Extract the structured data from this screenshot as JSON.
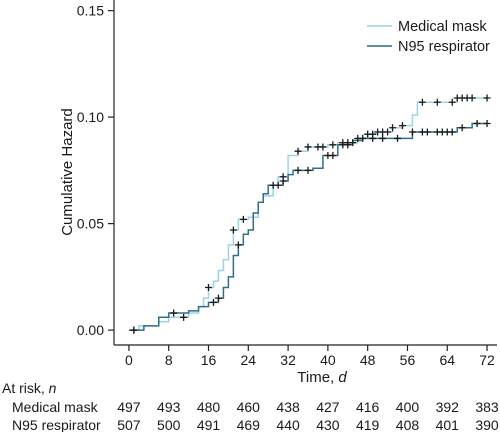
{
  "chart_data": {
    "type": "line",
    "title": "",
    "xlabel": "Time,",
    "xlabel_unit": "d",
    "ylabel": "Cumulative Hazard",
    "xlim": [
      -3,
      74
    ],
    "ylim": [
      -0.007,
      0.155
    ],
    "x_ticks": [
      0,
      8,
      16,
      24,
      32,
      40,
      48,
      56,
      64,
      72
    ],
    "y_ticks": [
      0,
      0.05,
      0.1,
      0.15
    ],
    "y_tick_labels": [
      "0.00",
      "0.05",
      "0.10",
      "0.15"
    ],
    "legend_position": "top-right",
    "series": [
      {
        "name": "Medical mask",
        "color": "#9dd3e6",
        "steps": [
          [
            0,
            0
          ],
          [
            2,
            0.002
          ],
          [
            6,
            0.004
          ],
          [
            8,
            0.006
          ],
          [
            12,
            0.008
          ],
          [
            14,
            0.011
          ],
          [
            15,
            0.015
          ],
          [
            16,
            0.02
          ],
          [
            17,
            0.023
          ],
          [
            18,
            0.028
          ],
          [
            19,
            0.033
          ],
          [
            20,
            0.04
          ],
          [
            21,
            0.047
          ],
          [
            22,
            0.052
          ],
          [
            24,
            0.053
          ],
          [
            26,
            0.06
          ],
          [
            27,
            0.063
          ],
          [
            29,
            0.068
          ],
          [
            30,
            0.072
          ],
          [
            32,
            0.082
          ],
          [
            34,
            0.084
          ],
          [
            36,
            0.086
          ],
          [
            40,
            0.087
          ],
          [
            42,
            0.088
          ],
          [
            46,
            0.09
          ],
          [
            48,
            0.092
          ],
          [
            50,
            0.093
          ],
          [
            53,
            0.095
          ],
          [
            55,
            0.096
          ],
          [
            57,
            0.101
          ],
          [
            58,
            0.107
          ],
          [
            66,
            0.109
          ],
          [
            72,
            0.109
          ]
        ],
        "censor_x": [
          1,
          11,
          16,
          21,
          23,
          29,
          31,
          34,
          36,
          38,
          39,
          41,
          43,
          44,
          45,
          46,
          47,
          48,
          49,
          50,
          51,
          52,
          53,
          55,
          59,
          62,
          65,
          66,
          67,
          68,
          69,
          72
        ]
      },
      {
        "name": "N95 respirator",
        "color": "#2f6f8a",
        "steps": [
          [
            0,
            0
          ],
          [
            3,
            0.002
          ],
          [
            6,
            0.006
          ],
          [
            8,
            0.008
          ],
          [
            12,
            0.009
          ],
          [
            14,
            0.011
          ],
          [
            16,
            0.013
          ],
          [
            18,
            0.015
          ],
          [
            19,
            0.02
          ],
          [
            20,
            0.025
          ],
          [
            21,
            0.035
          ],
          [
            22,
            0.04
          ],
          [
            23,
            0.045
          ],
          [
            24,
            0.047
          ],
          [
            25,
            0.055
          ],
          [
            26,
            0.06
          ],
          [
            27,
            0.064
          ],
          [
            28,
            0.068
          ],
          [
            31,
            0.07
          ],
          [
            32,
            0.073
          ],
          [
            33,
            0.075
          ],
          [
            37,
            0.076
          ],
          [
            39,
            0.082
          ],
          [
            42,
            0.087
          ],
          [
            45,
            0.089
          ],
          [
            47,
            0.09
          ],
          [
            57,
            0.093
          ],
          [
            66,
            0.095
          ],
          [
            69,
            0.097
          ],
          [
            72,
            0.097
          ]
        ],
        "censor_x": [
          1,
          9,
          17,
          18,
          22,
          30,
          31,
          34,
          36,
          40,
          41,
          43,
          44,
          49,
          51,
          54,
          57,
          59,
          60,
          62,
          63,
          64,
          65,
          67,
          70,
          72
        ]
      }
    ],
    "at_risk": {
      "header": "At risk,",
      "header_unit": "n",
      "rows": [
        {
          "label": "Medical mask",
          "values": [
            497,
            493,
            480,
            460,
            438,
            427,
            416,
            400,
            392,
            383
          ]
        },
        {
          "label": "N95 respirator",
          "values": [
            507,
            500,
            491,
            469,
            440,
            430,
            419,
            408,
            401,
            390
          ]
        }
      ]
    }
  }
}
